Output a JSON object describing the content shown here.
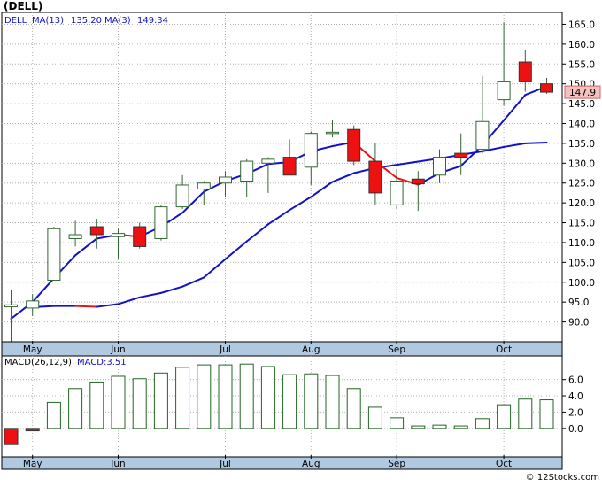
{
  "title": "(DELL)",
  "footer": "© 12Stocks.com",
  "colors": {
    "up_fill": "#ffffff",
    "down_fill": "#ee1111",
    "candle_border": "#336633",
    "ma_long": "#1111cc",
    "ma_short": "#1111cc",
    "ma_short_down": "#ee1111",
    "grid": "#b0b0b0",
    "axis_strip": "#b0c8e0",
    "price_tag_bg": "#f4c0c0",
    "macd_fill": "#ffffff",
    "macd_border": "#226622",
    "macd_neg": "#ee1111",
    "legend_text": "#1111cc"
  },
  "chart_data": [
    {
      "type": "candlestick",
      "symbol": "DELL",
      "legend": {
        "symbol_label": "DELL",
        "ma13_label": "MA(13)",
        "ma13_value": "135.20",
        "ma3_label": "MA(3)",
        "ma3_value": "149.34"
      },
      "last_price_label": "147.9",
      "last_price": 147.9,
      "ylim": [
        85,
        168
      ],
      "y_ticks": [
        90.0,
        95.0,
        100.0,
        105.0,
        110.0,
        115.0,
        120.0,
        125.0,
        130.0,
        135.0,
        140.0,
        145.0,
        150.0,
        155.0,
        160.0,
        165.0
      ],
      "y_tick_labels": [
        "90.0",
        "95.0",
        "100.0",
        "105.0",
        "110.0",
        "115.0",
        "120.0",
        "125.0",
        "130.0",
        "135.0",
        "140.0",
        "145.0",
        "150.0",
        "155.0",
        "160.0",
        "165.0"
      ],
      "x_labels": [
        "May",
        "Jun",
        "Jul",
        "Aug",
        "Sep",
        "Oct"
      ],
      "x_label_week": [
        1,
        5,
        10,
        14,
        18,
        23
      ],
      "candles": [
        {
          "o": 93.8,
          "h": 98.0,
          "l": 85.0,
          "c": 94.3
        },
        {
          "o": 93.5,
          "h": 97.0,
          "l": 91.5,
          "c": 95.3
        },
        {
          "o": 100.5,
          "h": 114.0,
          "l": 100.5,
          "c": 113.5
        },
        {
          "o": 111.0,
          "h": 115.5,
          "l": 109.0,
          "c": 112.0
        },
        {
          "o": 114.0,
          "h": 116.0,
          "l": 108.5,
          "c": 112.0
        },
        {
          "o": 111.5,
          "h": 113.5,
          "l": 106.0,
          "c": 112.3
        },
        {
          "o": 114.0,
          "h": 115.0,
          "l": 108.5,
          "c": 109.0
        },
        {
          "o": 111.0,
          "h": 119.5,
          "l": 110.5,
          "c": 119.0
        },
        {
          "o": 119.0,
          "h": 127.0,
          "l": 118.5,
          "c": 124.5
        },
        {
          "o": 123.5,
          "h": 125.5,
          "l": 119.5,
          "c": 125.0
        },
        {
          "o": 125.0,
          "h": 128.0,
          "l": 121.5,
          "c": 126.5
        },
        {
          "o": 125.5,
          "h": 131.0,
          "l": 121.5,
          "c": 130.5
        },
        {
          "o": 130.0,
          "h": 131.5,
          "l": 122.5,
          "c": 131.0
        },
        {
          "o": 131.5,
          "h": 136.0,
          "l": 127.0,
          "c": 127.0
        },
        {
          "o": 129.0,
          "h": 138.0,
          "l": 124.5,
          "c": 137.5
        },
        {
          "o": 137.5,
          "h": 141.0,
          "l": 136.5,
          "c": 137.8
        },
        {
          "o": 138.5,
          "h": 139.5,
          "l": 129.5,
          "c": 130.5
        },
        {
          "o": 130.5,
          "h": 135.0,
          "l": 119.5,
          "c": 122.5
        },
        {
          "o": 119.5,
          "h": 128.5,
          "l": 118.5,
          "c": 125.5
        },
        {
          "o": 126.0,
          "h": 128.0,
          "l": 118.0,
          "c": 124.8
        },
        {
          "o": 127.0,
          "h": 133.5,
          "l": 125.0,
          "c": 131.5
        },
        {
          "o": 132.5,
          "h": 137.5,
          "l": 127.0,
          "c": 131.5
        },
        {
          "o": 133.5,
          "h": 152.0,
          "l": 132.5,
          "c": 140.5
        },
        {
          "o": 146.0,
          "h": 165.5,
          "l": 144.5,
          "c": 150.5
        },
        {
          "o": 155.5,
          "h": 158.5,
          "l": 148.0,
          "c": 150.5
        },
        {
          "o": 150.0,
          "h": 151.5,
          "l": 147.5,
          "c": 147.9
        }
      ],
      "ma13": [
        null,
        93.7,
        94.0,
        94.0,
        93.8,
        94.5,
        96.2,
        97.3,
        98.9,
        101.2,
        105.8,
        110.3,
        114.6,
        118.2,
        121.5,
        125.3,
        127.5,
        128.8,
        129.6,
        130.4,
        131.2,
        132.1,
        133.0,
        134.1,
        135.0,
        135.2
      ],
      "ma3": [
        90.8,
        95.0,
        101.0,
        106.8,
        111.0,
        112.0,
        111.5,
        114.0,
        117.5,
        122.8,
        125.5,
        127.3,
        129.8,
        130.3,
        133.0,
        134.3,
        135.3,
        130.5,
        126.3,
        124.6,
        127.5,
        129.3,
        134.5,
        140.8,
        147.2,
        149.34
      ]
    },
    {
      "type": "bar",
      "title": "MACD",
      "legend": {
        "label": "MACD(26,12,9)",
        "value_label": "MACD:3.51"
      },
      "ylim": [
        -3.5,
        8.9
      ],
      "y_ticks": [
        0.0,
        2.0,
        4.0,
        6.0
      ],
      "y_tick_labels": [
        "0.0",
        "2.0",
        "4.0",
        "6.0"
      ],
      "x_labels": [
        "May",
        "Jun",
        "Jul",
        "Aug",
        "Sep",
        "Oct"
      ],
      "x_label_week": [
        1,
        5,
        10,
        14,
        18,
        23
      ],
      "values": [
        -2.0,
        -0.3,
        3.2,
        4.9,
        5.7,
        6.4,
        6.1,
        6.8,
        7.5,
        7.8,
        7.8,
        7.9,
        7.6,
        6.6,
        6.7,
        6.5,
        4.9,
        2.6,
        1.3,
        0.3,
        0.4,
        0.3,
        1.2,
        2.9,
        3.6,
        3.51
      ]
    }
  ]
}
